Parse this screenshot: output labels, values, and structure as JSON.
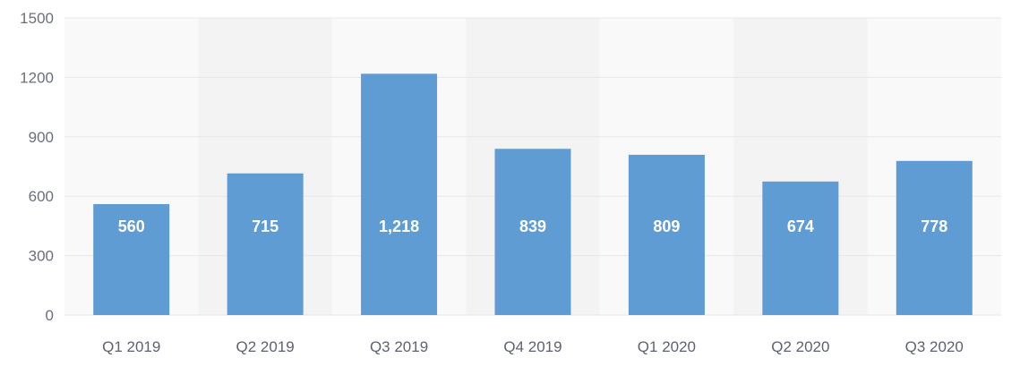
{
  "chart_data": {
    "type": "bar",
    "title": "",
    "xlabel": "",
    "ylabel": "",
    "categories": [
      "Q1 2019",
      "Q2 2019",
      "Q3 2019",
      "Q4 2019",
      "Q1 2020",
      "Q2 2020",
      "Q3 2020"
    ],
    "values": [
      560,
      715,
      1218,
      839,
      809,
      674,
      778
    ],
    "data_labels": [
      "560",
      "715",
      "1,218",
      "839",
      "809",
      "674",
      "778"
    ],
    "ylim": [
      0,
      1500
    ],
    "yticks": [
      0,
      300,
      600,
      900,
      1200,
      1500
    ],
    "ytick_labels": [
      "0",
      "300",
      "600",
      "900",
      "1200",
      "1500"
    ],
    "grid": true,
    "legend": "none"
  },
  "colors": {
    "bar": "#5e9cd3",
    "band_light": "#f9f9fa",
    "band_alt": "#f3f3f4",
    "grid": "#e6e7ea",
    "data_label": "#ffffff"
  }
}
